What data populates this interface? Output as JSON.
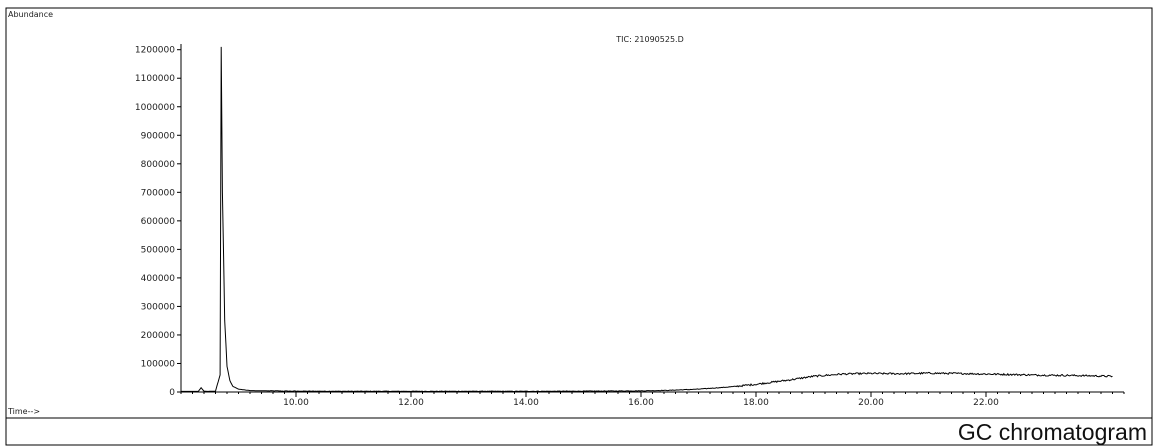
{
  "caption": "GC chromatogram",
  "chart_data": {
    "type": "line",
    "title": "TIC: 21090525.D",
    "ylabel": "Abundance",
    "xlabel": "Time-->",
    "xlim": [
      8.0,
      24.4
    ],
    "ylim": [
      0,
      1220000
    ],
    "yticks": [
      0,
      100000,
      200000,
      300000,
      400000,
      500000,
      600000,
      700000,
      800000,
      900000,
      1000000,
      1100000,
      1200000
    ],
    "ytick_labels": [
      "0",
      "100000",
      "200000",
      "300000",
      "400000",
      "500000",
      "600000",
      "700000",
      "800000",
      "900000",
      "1000000",
      "1100000",
      "1200000"
    ],
    "xticks": [
      10.0,
      12.0,
      14.0,
      16.0,
      18.0,
      20.0,
      22.0
    ],
    "xtick_labels": [
      "10.00",
      "12.00",
      "14.00",
      "16.00",
      "18.00",
      "20.00",
      "22.00"
    ],
    "grid": false,
    "line_color": "#000000",
    "series": [
      {
        "x": [
          8.0,
          8.3,
          8.35,
          8.4,
          8.45,
          8.6,
          8.68,
          8.7,
          8.72,
          8.76,
          8.8,
          8.85,
          8.9,
          9.0,
          9.2,
          9.5,
          10.0,
          11.0,
          12.0,
          13.0,
          14.0,
          15.0,
          16.0,
          16.5,
          17.0,
          17.5,
          18.0,
          18.5,
          19.0,
          19.5,
          20.0,
          20.5,
          21.0,
          21.5,
          22.0,
          22.5,
          23.0,
          23.5,
          24.0,
          24.2
        ],
        "y": [
          2000,
          2000,
          15000,
          3000,
          2000,
          3000,
          60000,
          1210000,
          700000,
          250000,
          90000,
          40000,
          20000,
          10000,
          5000,
          4000,
          3000,
          2500,
          2500,
          2500,
          2500,
          3000,
          4000,
          6000,
          10000,
          17000,
          27000,
          40000,
          55000,
          63000,
          65000,
          64000,
          66000,
          65000,
          63000,
          61000,
          59000,
          58000,
          56000,
          55000
        ]
      }
    ]
  }
}
